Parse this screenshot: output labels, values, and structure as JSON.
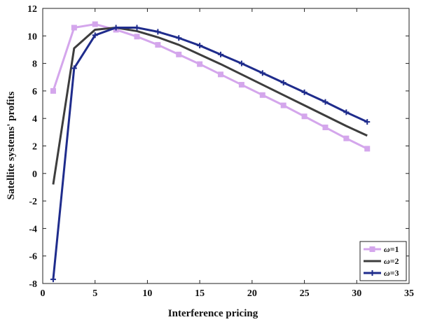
{
  "chart_data": {
    "type": "line",
    "xlabel": "Interference pricing",
    "ylabel": "Satellite systems' profits",
    "xlim": [
      0,
      35
    ],
    "ylim": [
      -8,
      12
    ],
    "xticks": [
      0,
      5,
      10,
      15,
      20,
      25,
      30,
      35
    ],
    "yticks": [
      -8,
      -6,
      -4,
      -2,
      0,
      2,
      4,
      6,
      8,
      10,
      12
    ],
    "grid": false,
    "legend_position": "bottom-right",
    "x": [
      1,
      3,
      5,
      7,
      9,
      11,
      13,
      15,
      17,
      19,
      21,
      23,
      25,
      27,
      29,
      31
    ],
    "series": [
      {
        "name": "ω=1",
        "legend_symbol": "ω",
        "legend_suffix": "=1",
        "color": "#d4a6ec",
        "marker": "square",
        "values": [
          6.0,
          10.6,
          10.85,
          10.45,
          9.95,
          9.35,
          8.65,
          7.95,
          7.2,
          6.45,
          5.7,
          4.95,
          4.15,
          3.35,
          2.55,
          1.8
        ]
      },
      {
        "name": "ω=2",
        "legend_symbol": "ω",
        "legend_suffix": "=2",
        "color": "#3d3d3d",
        "marker": "none",
        "values": [
          -0.8,
          9.1,
          10.45,
          10.6,
          10.35,
          9.9,
          9.35,
          8.65,
          7.95,
          7.2,
          6.45,
          5.7,
          4.95,
          4.2,
          3.45,
          2.75
        ]
      },
      {
        "name": "ω=3",
        "legend_symbol": "ω",
        "legend_suffix": "=3",
        "color": "#1f2c8c",
        "marker": "plus",
        "values": [
          -7.7,
          7.65,
          10.05,
          10.6,
          10.6,
          10.3,
          9.85,
          9.3,
          8.65,
          8.0,
          7.3,
          6.6,
          5.9,
          5.2,
          4.45,
          3.75
        ]
      }
    ]
  }
}
